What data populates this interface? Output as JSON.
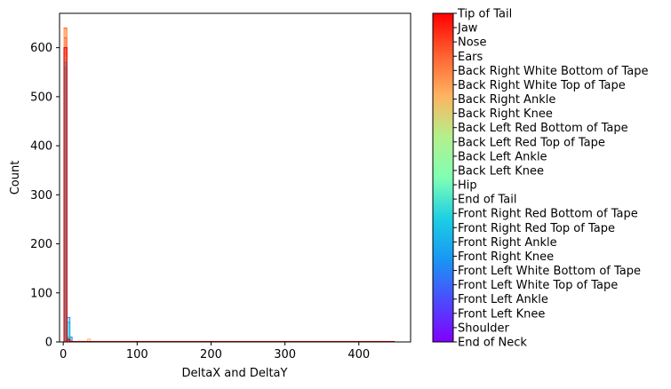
{
  "chart_data": {
    "type": "histogram",
    "xlabel": "DeltaX and DeltaY",
    "ylabel": "Count",
    "xlim": [
      -5,
      470
    ],
    "ylim": [
      0,
      670
    ],
    "xticks": [
      0,
      100,
      200,
      300,
      400
    ],
    "yticks": [
      0,
      100,
      200,
      300,
      400,
      500,
      600
    ],
    "grid": false,
    "colorbar": {
      "colormap": "rainbow",
      "position": "right",
      "labels": [
        "End of Neck",
        "Shoulder",
        "Front Left Knee",
        "Front Left Ankle",
        "Front Left White Top of Tape",
        "Front Left White Bottom of Tape",
        "Front Right Knee",
        "Front Right Ankle",
        "Front Right Red Top of Tape",
        "Front Right Red Bottom of Tape",
        "End of Tail",
        "Hip",
        "Back Left Knee",
        "Back Left Ankle",
        "Back Left Red Top of Tape",
        "Back Left Red Bottom of Tape",
        "Back Right Knee",
        "Back Right Ankle",
        "Back Right White Top of Tape",
        "Back Right White Bottom of Tape",
        "Ears",
        "Nose",
        "Jaw",
        "Tip of Tail"
      ]
    },
    "series": [
      {
        "color": "#ff0000",
        "bins": [
          [
            1,
            5,
            620
          ],
          [
            5,
            9,
            6
          ]
        ]
      },
      {
        "color": "#ff6a35",
        "bins": [
          [
            1,
            5,
            640
          ],
          [
            5,
            9,
            8
          ]
        ]
      },
      {
        "color": "#ff9c55",
        "bins": [
          [
            1,
            5,
            638
          ],
          [
            5,
            9,
            10
          ],
          [
            9,
            12,
            3
          ]
        ]
      },
      {
        "color": "#f5c878",
        "bins": [
          [
            1,
            5,
            580
          ],
          [
            33,
            37,
            6
          ]
        ]
      },
      {
        "color": "#2a8cf0",
        "bins": [
          [
            1,
            5,
            560
          ],
          [
            5,
            9,
            50
          ],
          [
            9,
            12,
            10
          ]
        ]
      },
      {
        "color": "#00c0d8",
        "bins": [
          [
            1,
            5,
            570
          ],
          [
            5,
            9,
            40
          ]
        ]
      },
      {
        "color": "#e80000",
        "bins": [
          [
            1,
            5,
            600
          ],
          [
            5,
            9,
            5
          ],
          [
            9,
            448,
            1
          ]
        ]
      }
    ]
  }
}
